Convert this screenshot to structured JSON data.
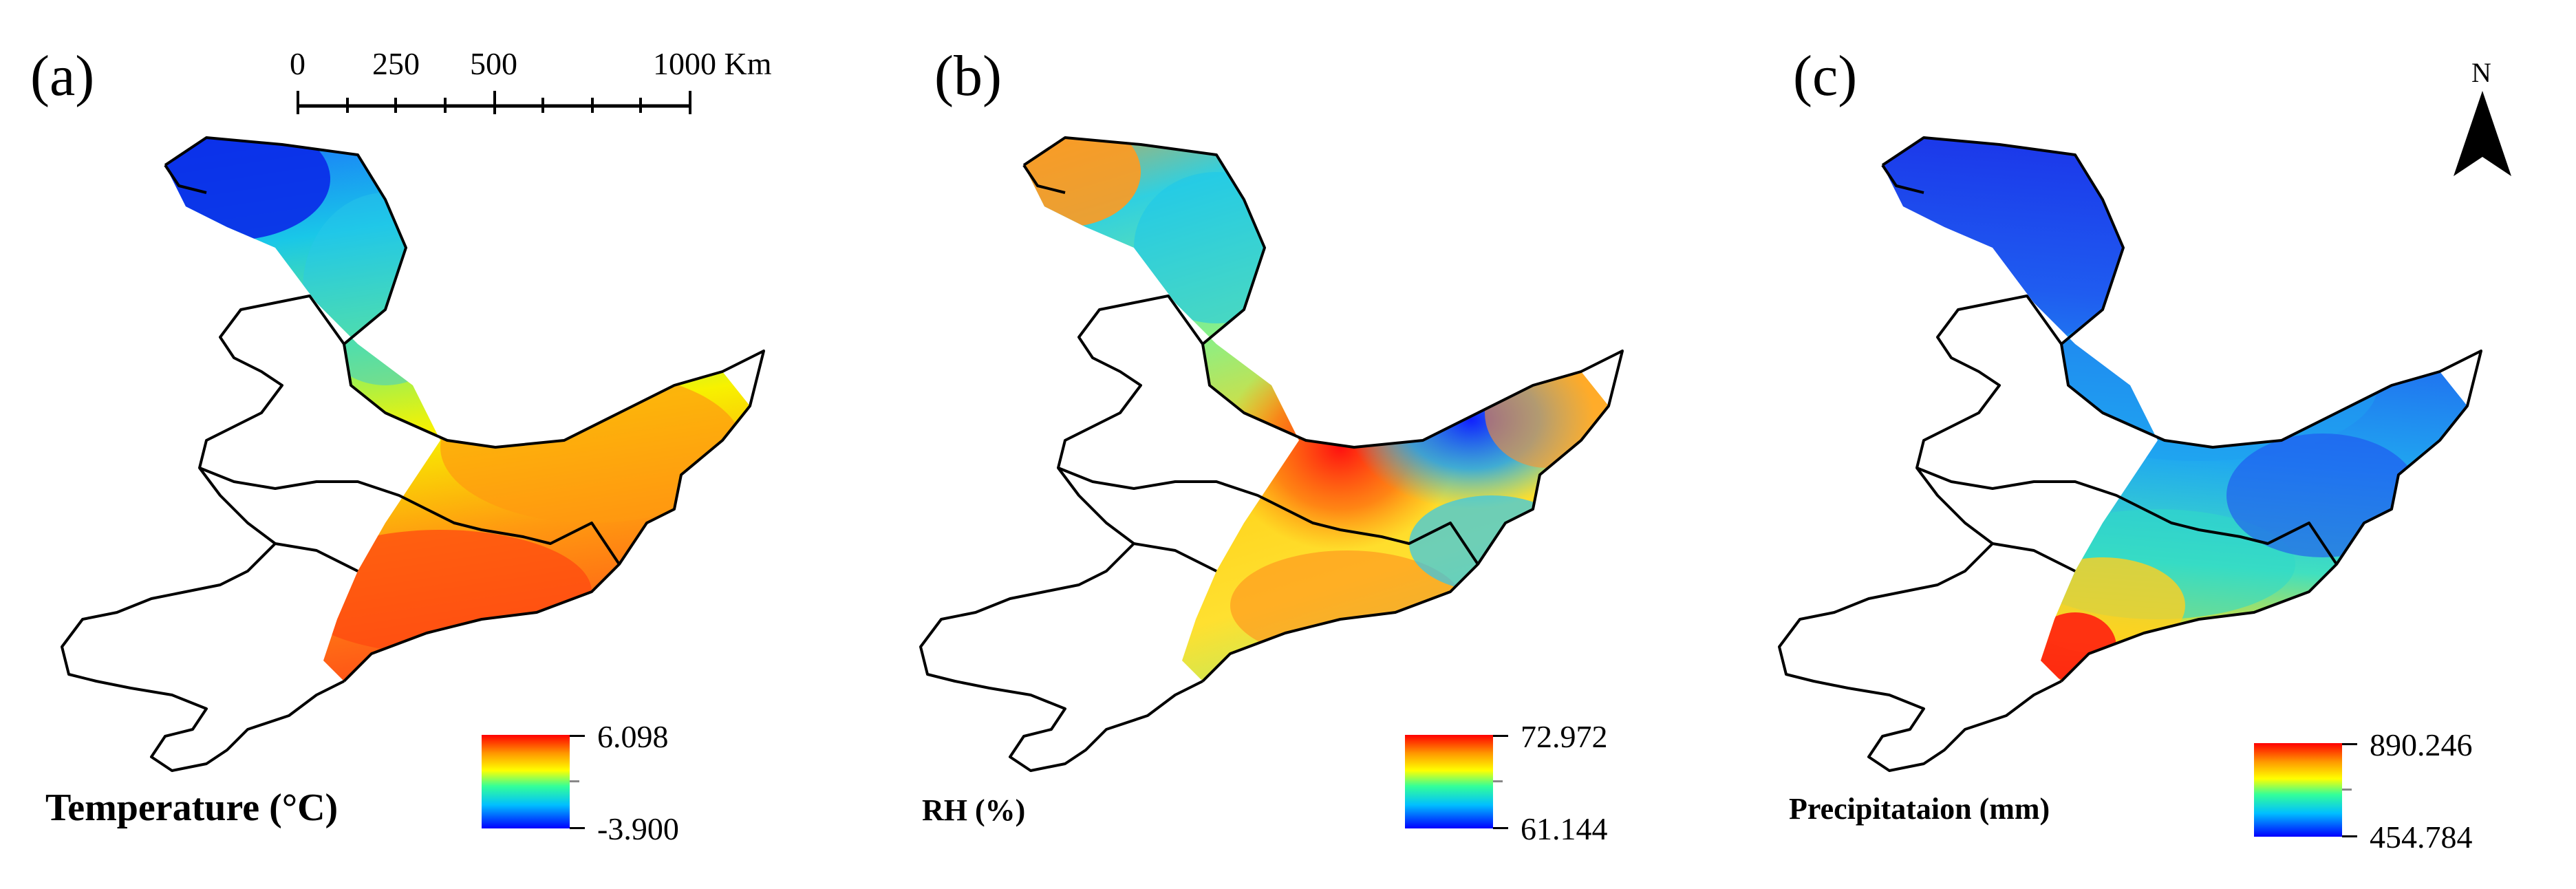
{
  "panels": [
    {
      "label": "(a)",
      "variable_title": "Temperature (°C)",
      "legend_max": "6.098",
      "legend_min": "-3.900",
      "field": "temperature"
    },
    {
      "label": "(b)",
      "variable_title": "RH (%)",
      "legend_max": "72.972",
      "legend_min": "61.144",
      "field": "rh"
    },
    {
      "label": "(c)",
      "variable_title": "Precipitataion (mm)",
      "legend_max": "890.246",
      "legend_min": "454.784",
      "field": "precipitation"
    }
  ],
  "scale_bar": {
    "labels": [
      "0",
      "250",
      "500",
      "1000 Km"
    ]
  },
  "north_arrow": {
    "label": "N",
    "icon": "north-arrow-icon"
  },
  "colors": {
    "ramp": [
      "#0000ff",
      "#00bfff",
      "#33ff99",
      "#ffff00",
      "#ff9900",
      "#ff0000"
    ],
    "outline": "#000000"
  }
}
